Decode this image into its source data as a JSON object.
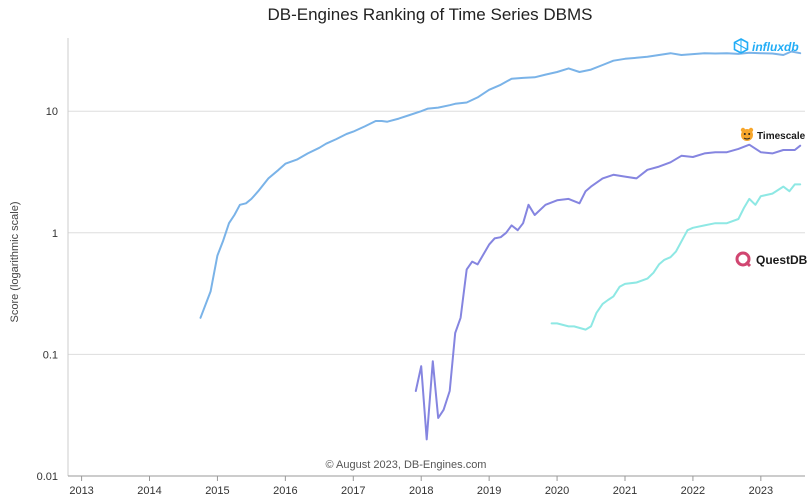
{
  "chart_data": {
    "type": "line",
    "title": "DB-Engines Ranking of Time Series DBMS",
    "ylabel": "Score (logarithmic scale)",
    "xlabel": "",
    "yscale": "log",
    "ylim": [
      0.01,
      40
    ],
    "xlim": [
      2012.8,
      2023.65
    ],
    "yticks": [
      0.01,
      0.1,
      1,
      10
    ],
    "ytick_labels": [
      "0.01",
      "0.1",
      "1",
      "10"
    ],
    "xticks": [
      2013,
      2014,
      2015,
      2016,
      2017,
      2018,
      2019,
      2020,
      2021,
      2022,
      2023
    ],
    "xtick_labels": [
      "2013",
      "2014",
      "2015",
      "2016",
      "2017",
      "2018",
      "2019",
      "2020",
      "2021",
      "2022",
      "2023"
    ],
    "grid": true,
    "credit": "© August 2023, DB-Engines.com",
    "series": [
      {
        "name": "influxdb",
        "label": "influxdb",
        "color": "#7ab3e8",
        "icon": "influxdb-logo-icon",
        "x": [
          2014.75,
          2014.9,
          2015.0,
          2015.08,
          2015.17,
          2015.25,
          2015.33,
          2015.42,
          2015.5,
          2015.6,
          2015.75,
          2015.9,
          2016.0,
          2016.17,
          2016.33,
          2016.5,
          2016.6,
          2016.75,
          2016.9,
          2017.0,
          2017.17,
          2017.33,
          2017.42,
          2017.5,
          2017.67,
          2017.83,
          2018.0,
          2018.1,
          2018.25,
          2018.42,
          2018.5,
          2018.67,
          2018.83,
          2019.0,
          2019.17,
          2019.33,
          2019.5,
          2019.67,
          2019.83,
          2020.0,
          2020.17,
          2020.33,
          2020.5,
          2020.67,
          2020.83,
          2021.0,
          2021.17,
          2021.33,
          2021.5,
          2021.67,
          2021.83,
          2022.0,
          2022.17,
          2022.33,
          2022.5,
          2022.67,
          2022.83,
          2023.0,
          2023.17,
          2023.33,
          2023.45,
          2023.58
        ],
        "values": [
          0.2,
          0.33,
          0.65,
          0.85,
          1.2,
          1.4,
          1.7,
          1.75,
          1.9,
          2.2,
          2.8,
          3.3,
          3.7,
          4.0,
          4.5,
          5.0,
          5.4,
          5.9,
          6.5,
          6.8,
          7.5,
          8.3,
          8.3,
          8.2,
          8.7,
          9.3,
          10.0,
          10.5,
          10.7,
          11.2,
          11.5,
          11.8,
          13.0,
          15.0,
          16.5,
          18.5,
          18.8,
          19.0,
          20.0,
          21.0,
          22.5,
          21.0,
          22.0,
          24.0,
          26.0,
          27.0,
          27.5,
          28.0,
          29.0,
          30.0,
          29.0,
          29.5,
          30.0,
          29.8,
          30.0,
          29.6,
          30.2,
          30.0,
          29.8,
          29.0,
          31.0,
          30.0
        ]
      },
      {
        "name": "Timescale",
        "label": "Timescale",
        "color": "#8585e0",
        "icon": "timescale-tiger-icon",
        "x": [
          2017.92,
          2018.0,
          2018.08,
          2018.17,
          2018.25,
          2018.33,
          2018.42,
          2018.5,
          2018.58,
          2018.67,
          2018.75,
          2018.83,
          2019.0,
          2019.08,
          2019.17,
          2019.25,
          2019.33,
          2019.42,
          2019.5,
          2019.58,
          2019.67,
          2019.83,
          2020.0,
          2020.17,
          2020.33,
          2020.42,
          2020.5,
          2020.67,
          2020.83,
          2021.0,
          2021.17,
          2021.33,
          2021.5,
          2021.67,
          2021.83,
          2022.0,
          2022.17,
          2022.33,
          2022.5,
          2022.67,
          2022.83,
          2023.0,
          2023.17,
          2023.33,
          2023.5,
          2023.58
        ],
        "values": [
          0.05,
          0.08,
          0.02,
          0.088,
          0.03,
          0.035,
          0.05,
          0.15,
          0.2,
          0.5,
          0.58,
          0.55,
          0.8,
          0.9,
          0.92,
          1.0,
          1.15,
          1.05,
          1.2,
          1.7,
          1.4,
          1.7,
          1.85,
          1.9,
          1.75,
          2.2,
          2.4,
          2.8,
          3.0,
          2.9,
          2.8,
          3.3,
          3.5,
          3.8,
          4.3,
          4.2,
          4.5,
          4.6,
          4.6,
          4.9,
          5.3,
          4.6,
          4.5,
          4.8,
          4.8,
          5.2
        ]
      },
      {
        "name": "QuestDB",
        "label": "QuestDB",
        "color": "#8ee8e4",
        "icon": "questdb-logo-icon",
        "x": [
          2019.92,
          2020.0,
          2020.17,
          2020.25,
          2020.42,
          2020.5,
          2020.58,
          2020.67,
          2020.75,
          2020.83,
          2020.92,
          2021.0,
          2021.17,
          2021.33,
          2021.42,
          2021.5,
          2021.58,
          2021.67,
          2021.75,
          2021.92,
          2022.0,
          2022.17,
          2022.33,
          2022.5,
          2022.67,
          2022.75,
          2022.83,
          2022.92,
          2023.0,
          2023.17,
          2023.33,
          2023.42,
          2023.5,
          2023.58
        ],
        "values": [
          0.18,
          0.18,
          0.17,
          0.17,
          0.16,
          0.17,
          0.22,
          0.26,
          0.28,
          0.3,
          0.36,
          0.38,
          0.39,
          0.42,
          0.47,
          0.55,
          0.6,
          0.63,
          0.7,
          1.05,
          1.1,
          1.15,
          1.2,
          1.2,
          1.3,
          1.6,
          1.9,
          1.7,
          2.0,
          2.1,
          2.4,
          2.2,
          2.5,
          2.5
        ]
      }
    ]
  }
}
